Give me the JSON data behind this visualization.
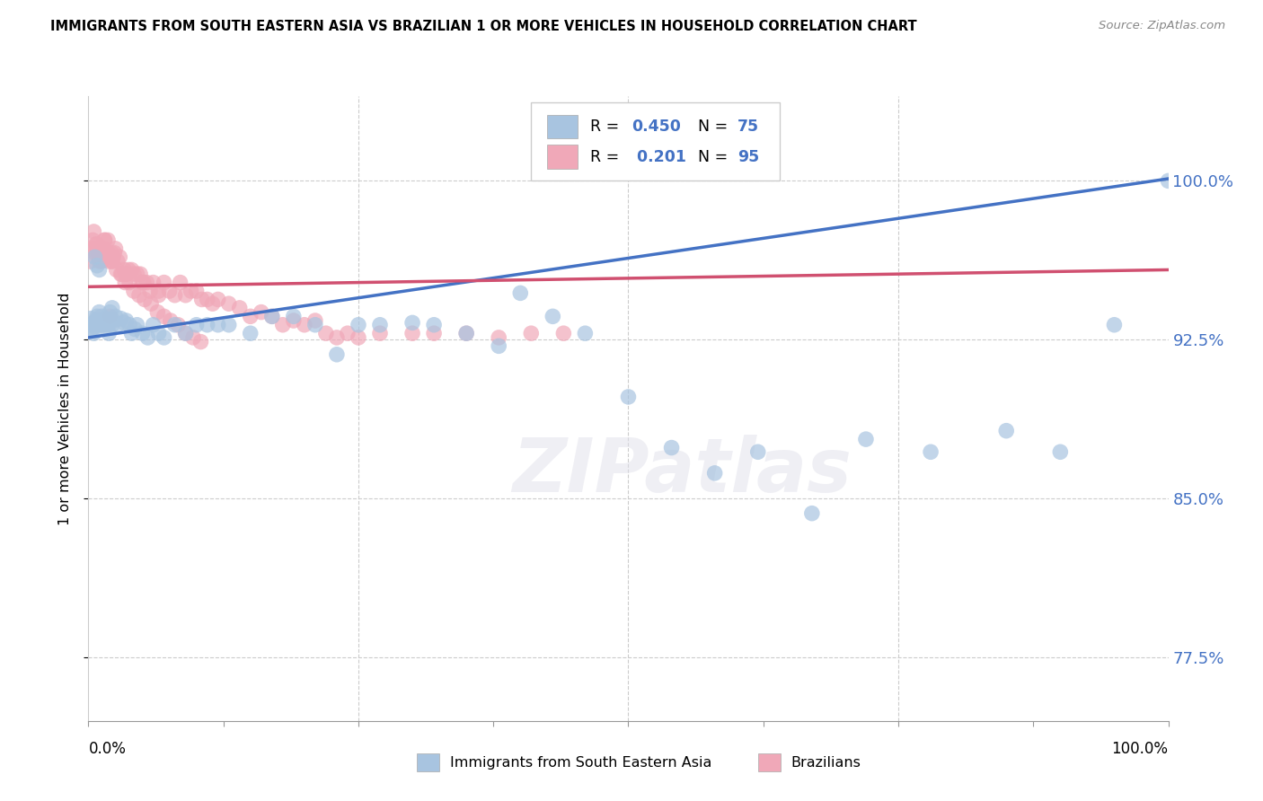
{
  "title": "IMMIGRANTS FROM SOUTH EASTERN ASIA VS BRAZILIAN 1 OR MORE VEHICLES IN HOUSEHOLD CORRELATION CHART",
  "source": "Source: ZipAtlas.com",
  "ylabel": "1 or more Vehicles in Household",
  "ytick_values": [
    0.775,
    0.85,
    0.925,
    1.0
  ],
  "blue_r": 0.45,
  "blue_n": 75,
  "pink_r": 0.201,
  "pink_n": 95,
  "bottom_legend_blue": "Immigrants from South Eastern Asia",
  "bottom_legend_pink": "Brazilians",
  "blue_scatter_color": "#a8c4e0",
  "pink_scatter_color": "#f0a8b8",
  "blue_line_color": "#4472c4",
  "pink_line_color": "#d05070",
  "text_blue_color": "#4472c4",
  "watermark_text": "ZIPatlas",
  "blue_x": [
    0.002,
    0.003,
    0.004,
    0.005,
    0.005,
    0.006,
    0.007,
    0.008,
    0.009,
    0.01,
    0.011,
    0.012,
    0.013,
    0.014,
    0.015,
    0.016,
    0.017,
    0.018,
    0.019,
    0.02,
    0.021,
    0.022,
    0.023,
    0.025,
    0.027,
    0.03,
    0.033,
    0.035,
    0.038,
    0.04,
    0.043,
    0.045,
    0.05,
    0.055,
    0.06,
    0.065,
    0.07,
    0.08,
    0.09,
    0.1,
    0.11,
    0.12,
    0.13,
    0.15,
    0.17,
    0.19,
    0.21,
    0.23,
    0.25,
    0.27,
    0.3,
    0.32,
    0.35,
    0.38,
    0.4,
    0.43,
    0.46,
    0.5,
    0.54,
    0.58,
    0.62,
    0.67,
    0.72,
    0.78,
    0.85,
    0.9,
    0.95,
    1.0,
    0.006,
    0.008,
    0.01,
    0.013,
    0.016,
    0.019,
    0.022
  ],
  "blue_y": [
    0.935,
    0.93,
    0.932,
    0.928,
    0.933,
    0.931,
    0.934,
    0.936,
    0.932,
    0.938,
    0.934,
    0.936,
    0.932,
    0.934,
    0.933,
    0.935,
    0.934,
    0.932,
    0.934,
    0.938,
    0.934,
    0.932,
    0.934,
    0.936,
    0.932,
    0.935,
    0.933,
    0.934,
    0.932,
    0.928,
    0.93,
    0.932,
    0.928,
    0.926,
    0.932,
    0.928,
    0.926,
    0.932,
    0.928,
    0.932,
    0.932,
    0.932,
    0.932,
    0.928,
    0.936,
    0.936,
    0.932,
    0.918,
    0.932,
    0.932,
    0.933,
    0.932,
    0.928,
    0.922,
    0.947,
    0.936,
    0.928,
    0.898,
    0.874,
    0.862,
    0.872,
    0.843,
    0.878,
    0.872,
    0.882,
    0.872,
    0.932,
    1.0,
    0.964,
    0.96,
    0.958,
    0.932,
    0.932,
    0.928,
    0.94
  ],
  "pink_x": [
    0.002,
    0.003,
    0.004,
    0.005,
    0.006,
    0.007,
    0.008,
    0.009,
    0.01,
    0.011,
    0.012,
    0.013,
    0.014,
    0.015,
    0.016,
    0.017,
    0.018,
    0.019,
    0.02,
    0.021,
    0.022,
    0.023,
    0.024,
    0.025,
    0.027,
    0.029,
    0.031,
    0.033,
    0.035,
    0.037,
    0.04,
    0.042,
    0.045,
    0.048,
    0.051,
    0.054,
    0.057,
    0.06,
    0.065,
    0.07,
    0.075,
    0.08,
    0.085,
    0.09,
    0.095,
    0.1,
    0.105,
    0.11,
    0.115,
    0.12,
    0.13,
    0.14,
    0.15,
    0.16,
    0.17,
    0.18,
    0.19,
    0.2,
    0.21,
    0.22,
    0.23,
    0.24,
    0.25,
    0.27,
    0.3,
    0.32,
    0.35,
    0.38,
    0.41,
    0.44,
    0.02,
    0.035,
    0.05,
    0.065,
    0.01,
    0.008,
    0.012,
    0.015,
    0.018,
    0.022,
    0.026,
    0.03,
    0.034,
    0.038,
    0.042,
    0.047,
    0.052,
    0.058,
    0.064,
    0.07,
    0.076,
    0.083,
    0.09,
    0.097,
    0.104
  ],
  "pink_y": [
    0.962,
    0.968,
    0.972,
    0.976,
    0.966,
    0.97,
    0.968,
    0.968,
    0.962,
    0.966,
    0.962,
    0.966,
    0.968,
    0.972,
    0.966,
    0.966,
    0.972,
    0.962,
    0.964,
    0.966,
    0.962,
    0.964,
    0.966,
    0.968,
    0.962,
    0.964,
    0.956,
    0.958,
    0.956,
    0.958,
    0.958,
    0.956,
    0.956,
    0.956,
    0.952,
    0.952,
    0.948,
    0.952,
    0.948,
    0.952,
    0.948,
    0.946,
    0.952,
    0.946,
    0.948,
    0.948,
    0.944,
    0.944,
    0.942,
    0.944,
    0.942,
    0.94,
    0.936,
    0.938,
    0.936,
    0.932,
    0.934,
    0.932,
    0.934,
    0.928,
    0.926,
    0.928,
    0.926,
    0.928,
    0.928,
    0.928,
    0.928,
    0.926,
    0.928,
    0.928,
    0.936,
    0.956,
    0.952,
    0.946,
    0.964,
    0.97,
    0.964,
    0.972,
    0.966,
    0.962,
    0.958,
    0.956,
    0.952,
    0.952,
    0.948,
    0.946,
    0.944,
    0.942,
    0.938,
    0.936,
    0.934,
    0.932,
    0.928,
    0.926,
    0.924
  ]
}
